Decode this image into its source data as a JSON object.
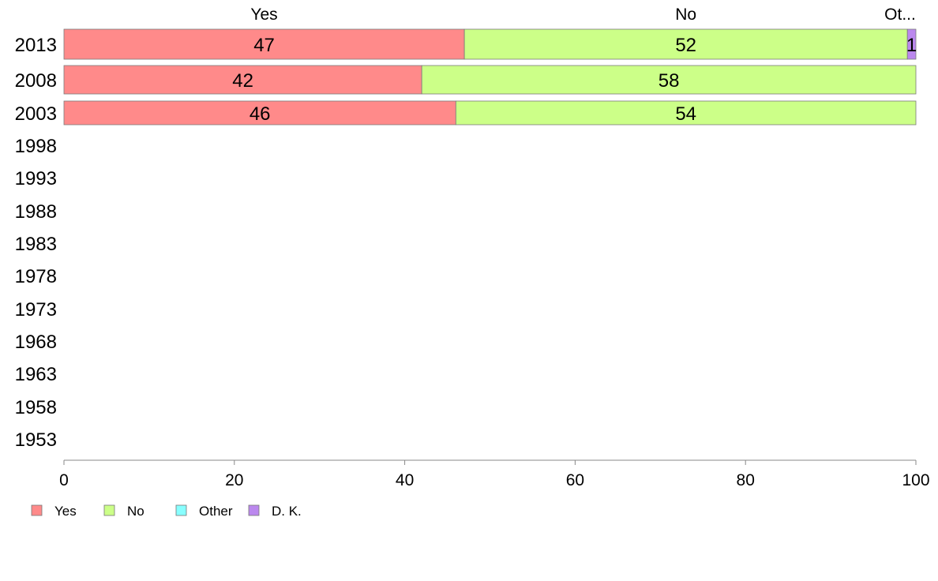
{
  "chart_data": {
    "type": "bar",
    "orientation": "horizontal",
    "stacked": true,
    "title": "",
    "xlabel": "",
    "ylabel": "",
    "xlim": [
      0,
      100
    ],
    "x_ticks": [
      "0",
      "20",
      "40",
      "60",
      "80",
      "100"
    ],
    "categories": [
      "2013",
      "2008",
      "2003",
      "1998",
      "1993",
      "1988",
      "1983",
      "1978",
      "1973",
      "1968",
      "1963",
      "1958",
      "1953"
    ],
    "column_labels": [
      "Yes",
      "No",
      "Ot..."
    ],
    "series": [
      {
        "name": "Yes",
        "color": "#ff8a8a",
        "values": [
          47,
          42,
          46,
          null,
          null,
          null,
          null,
          null,
          null,
          null,
          null,
          null,
          null
        ]
      },
      {
        "name": "No",
        "color": "#ccff88",
        "values": [
          52,
          58,
          54,
          null,
          null,
          null,
          null,
          null,
          null,
          null,
          null,
          null,
          null
        ]
      },
      {
        "name": "Other",
        "color": "#88ffff",
        "values": [
          0,
          0,
          0,
          null,
          null,
          null,
          null,
          null,
          null,
          null,
          null,
          null,
          null
        ]
      },
      {
        "name": "D. K.",
        "color": "#bb88ee",
        "values": [
          1,
          0,
          0,
          null,
          null,
          null,
          null,
          null,
          null,
          null,
          null,
          null,
          null
        ]
      }
    ],
    "grid": false,
    "legend_position": "bottom-left"
  }
}
